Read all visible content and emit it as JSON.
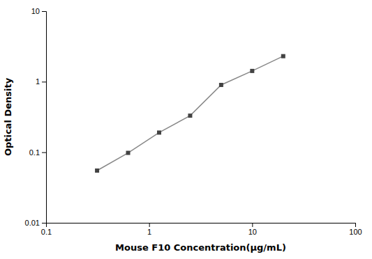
{
  "chart_data": {
    "type": "line",
    "x_label": "Mouse F10 Concentration(μg/mL)",
    "y_label": "Optical Density",
    "x": [
      0.3125,
      0.625,
      1.25,
      2.5,
      5,
      10,
      20
    ],
    "series": [
      {
        "values": [
          0.055,
          0.098,
          0.19,
          0.33,
          0.9,
          1.42,
          2.3
        ],
        "color": "#888888",
        "marker": "square",
        "line_style": "solid"
      }
    ],
    "xlim": [
      0.1,
      100
    ],
    "ylim": [
      0.01,
      10
    ],
    "xticks": [
      0.1,
      1,
      10,
      100
    ],
    "yticks": [
      0.01,
      0.1,
      1,
      10
    ],
    "log": true,
    "grid": false
  }
}
